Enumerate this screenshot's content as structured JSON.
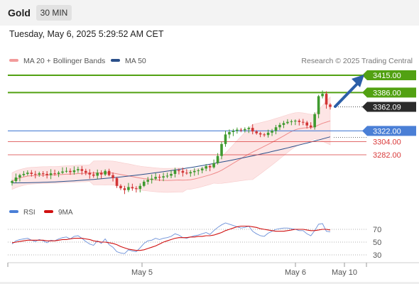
{
  "header": {
    "asset": "Gold",
    "timeframe": "30 MIN",
    "timestamp": "Tuesday, May 6, 2025 5:29:52 AM CET"
  },
  "legend": {
    "ma20_bb": "MA 20 + Bollinger Bands",
    "ma50": "MA 50",
    "copyright": "Research © 2025 Trading Central"
  },
  "rsi_legend": {
    "rsi": "RSI",
    "ma": "9MA"
  },
  "colors": {
    "green": "#52a112",
    "blue": "#4a7fd6",
    "red": "#d93a3a",
    "price_bg": "#2b2b2b",
    "bb_fill": "#fde1e1",
    "ma50": "#2a4f8a",
    "arrow": "#2c5fa8",
    "bull": "#3f9a2f",
    "bear": "#d23535"
  },
  "levels": [
    {
      "value": 3415.0,
      "label": "3415.00",
      "style": "green-filled"
    },
    {
      "value": 3386.0,
      "label": "3386.00",
      "style": "green-filled"
    },
    {
      "value": 3362.09,
      "label": "3362.09",
      "style": "price"
    },
    {
      "value": 3322.0,
      "label": "3322.00",
      "style": "blue-filled"
    },
    {
      "value": 3304.0,
      "label": "3304.00",
      "style": "red-text"
    },
    {
      "value": 3282.0,
      "label": "3282.00",
      "style": "red-text"
    }
  ],
  "chart_data": [
    {
      "type": "candlestick",
      "x_labels": [
        "May 5",
        "May 6",
        "May 10"
      ],
      "ohlc_close": [
        3238,
        3244,
        3248,
        3250,
        3252,
        3250,
        3249,
        3251,
        3250,
        3248,
        3251,
        3250,
        3252,
        3254,
        3255,
        3253,
        3256,
        3258,
        3255,
        3252,
        3249,
        3247,
        3252,
        3249,
        3255,
        3248,
        3243,
        3230,
        3226,
        3223,
        3228,
        3226,
        3225,
        3230,
        3237,
        3240,
        3242,
        3245,
        3244,
        3246,
        3247,
        3250,
        3256,
        3255,
        3252,
        3251,
        3253,
        3255,
        3256,
        3259,
        3263,
        3261,
        3268,
        3280,
        3300,
        3316,
        3320,
        3322,
        3324,
        3323,
        3325,
        3327,
        3321,
        3318,
        3316,
        3315,
        3319,
        3322,
        3328,
        3332,
        3335,
        3337,
        3338,
        3339,
        3337,
        3336,
        3331,
        3328,
        3350,
        3380,
        3384,
        3366,
        3362
      ],
      "ma50_start": 3235,
      "ma50_end": 3312
    },
    {
      "type": "line",
      "title": "RSI",
      "series": [
        {
          "name": "RSI"
        },
        {
          "name": "9MA"
        }
      ],
      "ytick_labels": [
        "70",
        "50",
        "30"
      ],
      "ylim": [
        20,
        80
      ],
      "rsi": [
        47,
        52,
        54,
        55,
        56,
        53,
        51,
        54,
        52,
        49,
        53,
        52,
        55,
        57,
        58,
        55,
        59,
        60,
        56,
        51,
        47,
        45,
        52,
        48,
        55,
        46,
        42,
        35,
        33,
        32,
        38,
        36,
        35,
        41,
        48,
        52,
        53,
        56,
        54,
        56,
        57,
        59,
        63,
        61,
        57,
        56,
        58,
        60,
        61,
        63,
        65,
        62,
        68,
        73,
        77,
        80,
        78,
        76,
        74,
        72,
        73,
        75,
        67,
        63,
        60,
        59,
        64,
        67,
        70,
        71,
        72,
        72,
        71,
        70,
        68,
        68,
        63,
        60,
        68,
        78,
        79,
        67,
        66
      ],
      "rsi_ma": [
        49,
        50,
        51,
        52,
        53,
        53,
        53,
        53,
        53,
        52,
        52,
        52,
        53,
        54,
        54,
        55,
        56,
        56,
        56,
        55,
        54,
        52,
        51,
        50,
        50,
        49,
        48,
        46,
        43,
        41,
        39,
        38,
        37,
        37,
        38,
        40,
        42,
        44,
        47,
        50,
        52,
        54,
        56,
        57,
        57,
        57,
        58,
        58,
        59,
        59,
        60,
        60,
        61,
        63,
        65,
        68,
        70,
        72,
        74,
        75,
        75,
        75,
        74,
        73,
        71,
        70,
        69,
        68,
        67,
        67,
        67,
        68,
        69,
        70,
        70,
        70,
        69,
        68,
        68,
        69,
        70,
        70,
        69
      ]
    }
  ]
}
